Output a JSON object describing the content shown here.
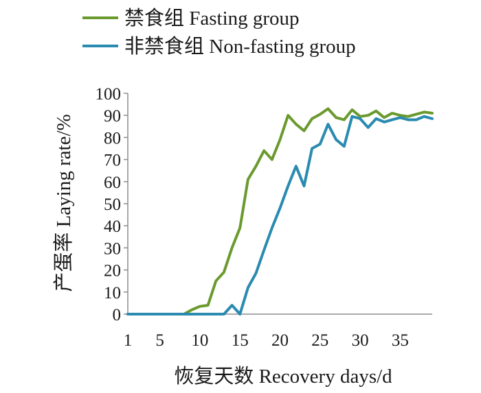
{
  "chart_data": {
    "type": "line",
    "xlabel": "恢复天数  Recovery days/d",
    "ylabel": "产蛋率  Laying rate/%",
    "xlim": [
      1,
      39
    ],
    "ylim": [
      0,
      100
    ],
    "x_ticks": [
      1,
      5,
      10,
      15,
      20,
      25,
      30,
      35
    ],
    "y_ticks": [
      0,
      10,
      20,
      30,
      40,
      50,
      60,
      70,
      80,
      90,
      100
    ],
    "grid": false,
    "legend_position": "top",
    "x": [
      1,
      2,
      3,
      4,
      5,
      6,
      7,
      8,
      9,
      10,
      11,
      12,
      13,
      14,
      15,
      16,
      17,
      18,
      19,
      20,
      21,
      22,
      23,
      24,
      25,
      26,
      27,
      28,
      29,
      30,
      31,
      32,
      33,
      34,
      35,
      36,
      37,
      38,
      39
    ],
    "series": [
      {
        "name": "禁食组  Fasting group",
        "color": "#6a9a2e",
        "values": [
          0,
          0,
          0,
          0,
          0,
          0,
          0,
          0,
          2,
          3.5,
          4,
          15,
          19,
          30,
          39,
          61,
          67,
          74,
          70,
          79,
          90,
          86,
          83,
          88.5,
          90.5,
          93,
          89,
          88,
          92.5,
          89.5,
          90,
          92,
          89,
          91,
          90,
          89.5,
          90.5,
          91.5,
          91
        ]
      },
      {
        "name": "非禁食组  Non-fasting group",
        "color": "#2a8ab0",
        "values": [
          0,
          0,
          0,
          0,
          0,
          0,
          0,
          0,
          0,
          0,
          0,
          0,
          0,
          4,
          0,
          12,
          18.5,
          29,
          39,
          48,
          58,
          67,
          58,
          75,
          77,
          86,
          79,
          76,
          89.5,
          88.5,
          84.5,
          88.5,
          87,
          88,
          89,
          88,
          88,
          89.5,
          88.5
        ]
      }
    ]
  }
}
